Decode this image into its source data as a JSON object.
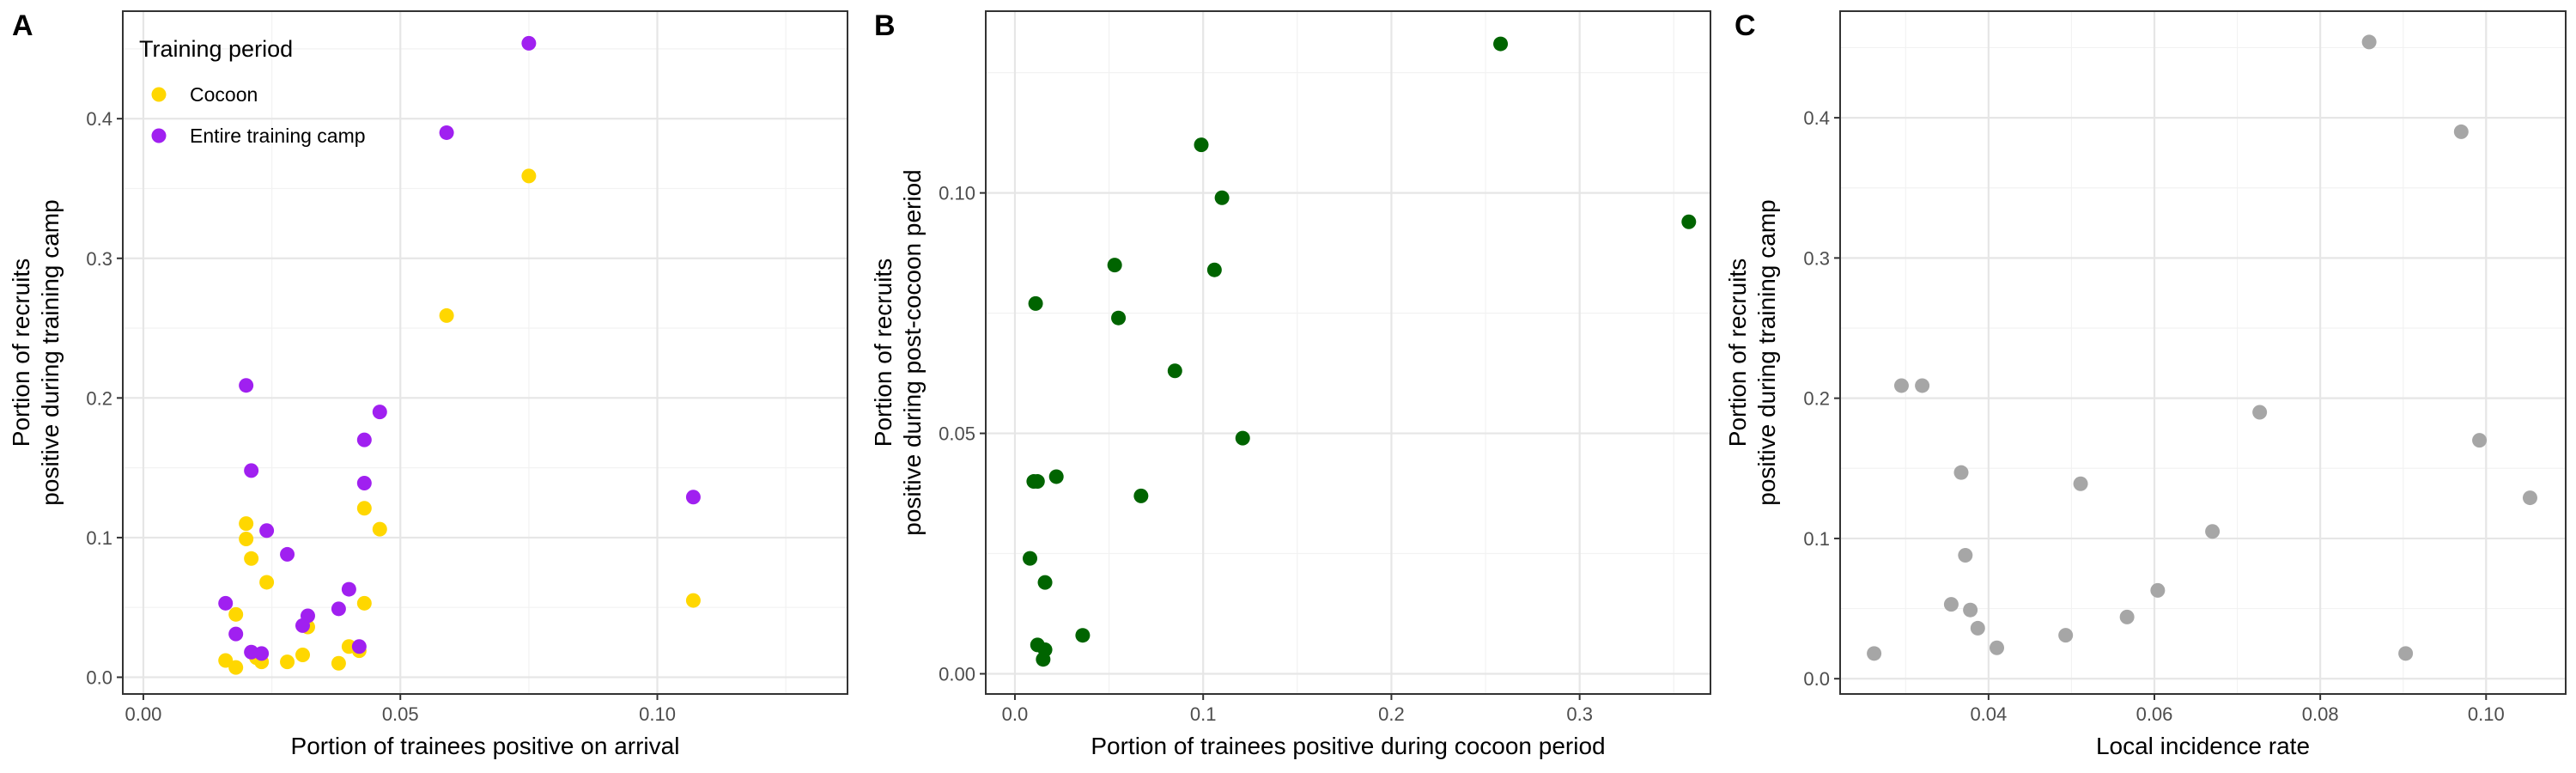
{
  "chart_data": [
    {
      "type": "scatter",
      "panel": "A",
      "xlabel": "Portion of trainees positive on arrival",
      "ylabel": [
        "Portion of recruits",
        "positive during training camp"
      ],
      "xlim": [
        -0.004,
        0.137
      ],
      "ylim": [
        -0.012,
        0.477
      ],
      "x_ticks": [
        0.0,
        0.05,
        0.1
      ],
      "x_tick_labels": [
        "0.00",
        "0.05",
        "0.10"
      ],
      "y_ticks": [
        0.0,
        0.1,
        0.2,
        0.3,
        0.4
      ],
      "y_tick_labels": [
        "0.0",
        "0.1",
        "0.2",
        "0.3",
        "0.4"
      ],
      "grid": true,
      "legend": {
        "title": "Training period",
        "position": "top-left",
        "entries": [
          "Cocoon",
          "Entire training camp"
        ]
      },
      "series": [
        {
          "name": "Cocoon",
          "color": "#FFD700",
          "points": [
            [
              0.016,
              0.012
            ],
            [
              0.018,
              0.007
            ],
            [
              0.018,
              0.045
            ],
            [
              0.02,
              0.099
            ],
            [
              0.02,
              0.11
            ],
            [
              0.021,
              0.085
            ],
            [
              0.022,
              0.014
            ],
            [
              0.023,
              0.011
            ],
            [
              0.024,
              0.068
            ],
            [
              0.028,
              0.011
            ],
            [
              0.031,
              0.016
            ],
            [
              0.032,
              0.036
            ],
            [
              0.038,
              0.01
            ],
            [
              0.04,
              0.022
            ],
            [
              0.042,
              0.019
            ],
            [
              0.043,
              0.121
            ],
            [
              0.043,
              0.053
            ],
            [
              0.046,
              0.106
            ],
            [
              0.059,
              0.259
            ],
            [
              0.075,
              0.359
            ],
            [
              0.107,
              0.055
            ]
          ]
        },
        {
          "name": "Entire training camp",
          "color": "#A020F0",
          "points": [
            [
              0.016,
              0.053
            ],
            [
              0.018,
              0.031
            ],
            [
              0.02,
              0.209
            ],
            [
              0.021,
              0.148
            ],
            [
              0.021,
              0.018
            ],
            [
              0.023,
              0.017
            ],
            [
              0.024,
              0.105
            ],
            [
              0.028,
              0.088
            ],
            [
              0.031,
              0.037
            ],
            [
              0.032,
              0.044
            ],
            [
              0.038,
              0.049
            ],
            [
              0.04,
              0.063
            ],
            [
              0.042,
              0.022
            ],
            [
              0.043,
              0.17
            ],
            [
              0.043,
              0.139
            ],
            [
              0.046,
              0.19
            ],
            [
              0.059,
              0.39
            ],
            [
              0.075,
              0.454
            ],
            [
              0.107,
              0.129
            ]
          ]
        }
      ]
    },
    {
      "type": "scatter",
      "panel": "B",
      "xlabel": "Portion of trainees positive during cocoon period",
      "ylabel": [
        "Portion of recruits",
        "positive during post-cocoon period"
      ],
      "xlim": [
        -0.0155,
        0.3695
      ],
      "ylim": [
        -0.0042,
        0.1378
      ],
      "x_ticks": [
        0.0,
        0.1,
        0.2,
        0.3
      ],
      "x_tick_labels": [
        "0.0",
        "0.1",
        "0.2",
        "0.3"
      ],
      "y_ticks": [
        0.0,
        0.05,
        0.1
      ],
      "y_tick_labels": [
        "0.00",
        "0.05",
        "0.10"
      ],
      "grid": true,
      "series": [
        {
          "name": "",
          "color": "#006400",
          "points": [
            [
              0.008,
              0.024
            ],
            [
              0.01,
              0.04
            ],
            [
              0.011,
              0.077
            ],
            [
              0.012,
              0.006
            ],
            [
              0.012,
              0.04
            ],
            [
              0.015,
              0.003
            ],
            [
              0.016,
              0.019
            ],
            [
              0.016,
              0.005
            ],
            [
              0.022,
              0.041
            ],
            [
              0.036,
              0.008
            ],
            [
              0.053,
              0.085
            ],
            [
              0.055,
              0.074
            ],
            [
              0.067,
              0.037
            ],
            [
              0.085,
              0.063
            ],
            [
              0.099,
              0.11
            ],
            [
              0.106,
              0.084
            ],
            [
              0.11,
              0.099
            ],
            [
              0.121,
              0.049
            ],
            [
              0.258,
              0.131
            ],
            [
              0.358,
              0.094
            ]
          ]
        }
      ]
    },
    {
      "type": "scatter",
      "panel": "C",
      "xlabel": "Local incidence rate",
      "ylabel": [
        "Portion of recruits",
        "positive during training camp"
      ],
      "xlim": [
        0.0221,
        0.1096
      ],
      "ylim": [
        -0.0109,
        0.476
      ],
      "x_ticks": [
        0.04,
        0.06,
        0.08,
        0.1
      ],
      "x_tick_labels": [
        "0.04",
        "0.06",
        "0.08",
        "0.10"
      ],
      "y_ticks": [
        0.0,
        0.1,
        0.2,
        0.3,
        0.4
      ],
      "y_tick_labels": [
        "0.0",
        "0.1",
        "0.2",
        "0.3",
        "0.4"
      ],
      "grid": true,
      "series": [
        {
          "name": "",
          "color": "#A6A6A6",
          "points": [
            [
              0.0262,
              0.018
            ],
            [
              0.0295,
              0.209
            ],
            [
              0.032,
              0.209
            ],
            [
              0.0355,
              0.053
            ],
            [
              0.0367,
              0.147
            ],
            [
              0.0372,
              0.088
            ],
            [
              0.0378,
              0.049
            ],
            [
              0.0387,
              0.036
            ],
            [
              0.041,
              0.022
            ],
            [
              0.0493,
              0.031
            ],
            [
              0.0511,
              0.139
            ],
            [
              0.0567,
              0.044
            ],
            [
              0.0604,
              0.063
            ],
            [
              0.067,
              0.105
            ],
            [
              0.0727,
              0.19
            ],
            [
              0.0859,
              0.454
            ],
            [
              0.0903,
              0.018
            ],
            [
              0.097,
              0.39
            ],
            [
              0.0992,
              0.17
            ],
            [
              0.1053,
              0.129
            ]
          ]
        }
      ]
    }
  ]
}
